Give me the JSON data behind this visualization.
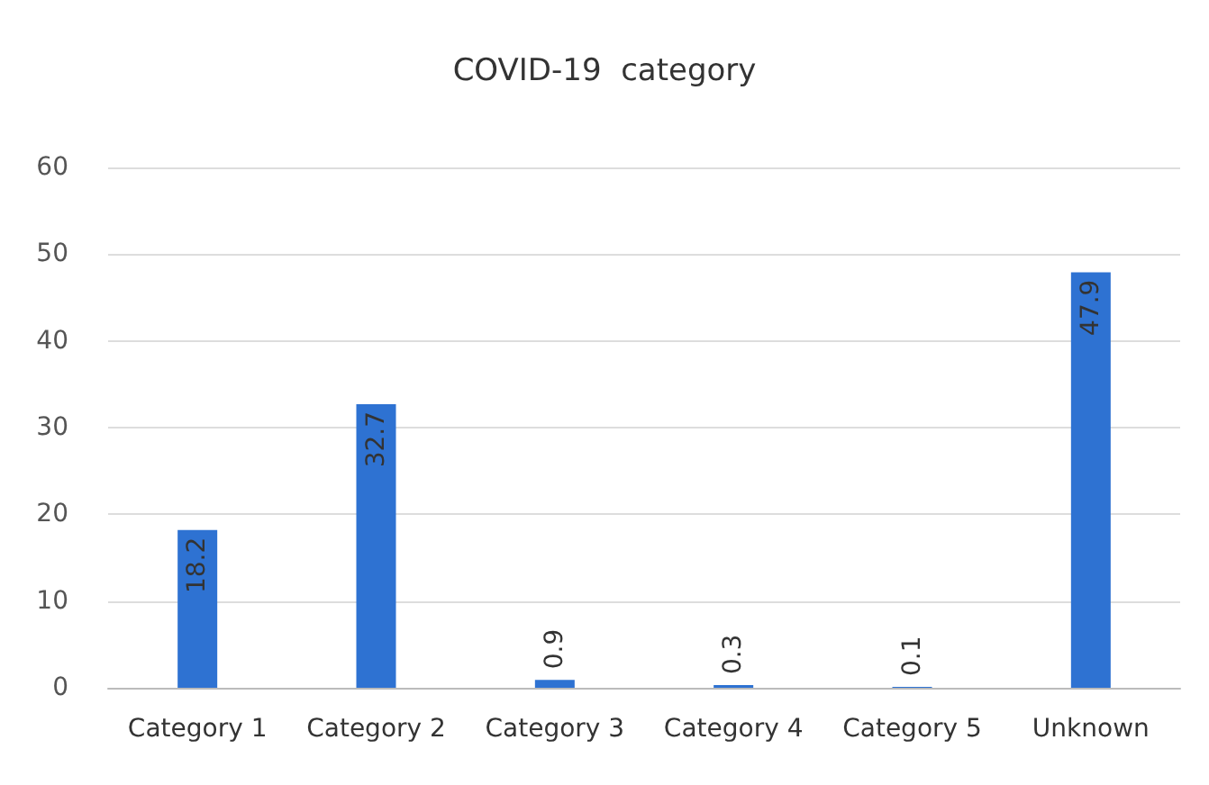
{
  "chart_data": {
    "type": "bar",
    "title": "COVID-19  category",
    "categories": [
      "Category 1",
      "Category 2",
      "Category 3",
      "Category 4",
      "Category 5",
      "Unknown"
    ],
    "values": [
      18.2,
      32.7,
      0.9,
      0.3,
      0.1,
      47.9
    ],
    "color": "#2e72d2",
    "ylim": [
      0,
      60
    ],
    "yticks": [
      0,
      10,
      20,
      30,
      40,
      50,
      60
    ],
    "grid": "y",
    "data_labels": true
  }
}
